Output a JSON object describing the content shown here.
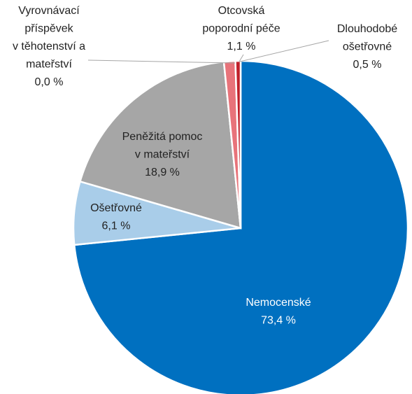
{
  "chart_data": {
    "type": "pie",
    "categories": [
      "Nemocenské",
      "Ošetřovné",
      "Peněžitá pomoc\nv mateřství",
      "Vyrovnávací\npříspěvek\nv těhotenství a\nmateřství",
      "Otcovská\npoporodní péče",
      "Dlouhodobé\nošetřovné"
    ],
    "values": [
      73.4,
      6.1,
      18.9,
      0.0,
      1.1,
      0.5
    ],
    "value_labels": [
      "73,4 %",
      "6,1 %",
      "18,9 %",
      "0,0 %",
      "1,1 %",
      "0,5 %"
    ],
    "colors": [
      "#0070c0",
      "#a9cde9",
      "#a6a6a6",
      "#7f7f7f",
      "#e8737a",
      "#c0202a"
    ]
  }
}
